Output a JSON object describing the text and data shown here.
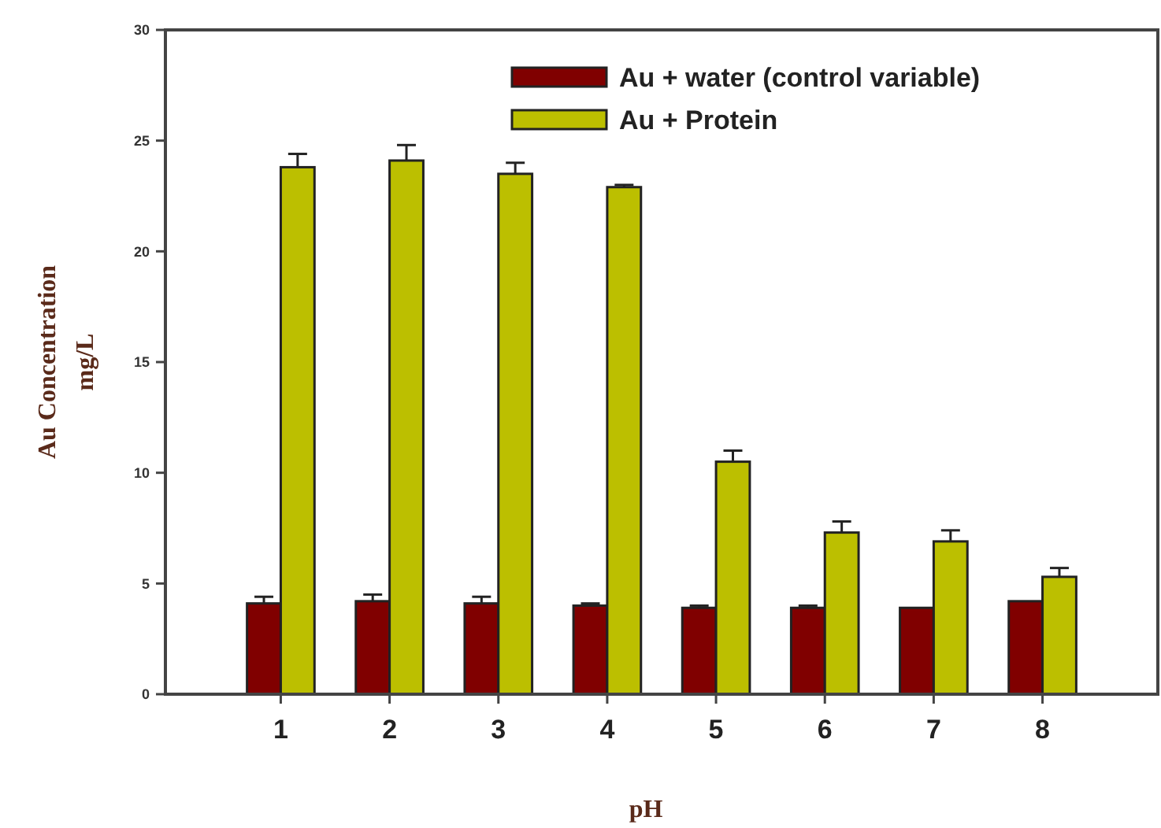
{
  "chart_data": {
    "type": "bar",
    "xlabel": "pH",
    "ylabel": "Au Concentration\nmg/L",
    "categories": [
      "1",
      "2",
      "3",
      "4",
      "5",
      "6",
      "7",
      "8"
    ],
    "series": [
      {
        "name": "Au + water (control variable)",
        "color": "#800000",
        "values": [
          4.1,
          4.2,
          4.1,
          4.0,
          3.9,
          3.9,
          3.9,
          4.2
        ],
        "errors": [
          0.3,
          0.3,
          0.3,
          0.1,
          0.1,
          0.1,
          null,
          null
        ]
      },
      {
        "name": "Au + Protein",
        "color": "#bcbf00",
        "values": [
          23.8,
          24.1,
          23.5,
          22.9,
          10.5,
          7.3,
          6.9,
          5.3
        ],
        "errors": [
          0.6,
          0.7,
          0.5,
          0.1,
          0.5,
          0.5,
          0.5,
          0.4
        ]
      }
    ],
    "ylim": [
      0,
      30
    ],
    "yticks": [
      0,
      5,
      10,
      15,
      20,
      25,
      30
    ],
    "legend": "top right",
    "grid": false
  }
}
